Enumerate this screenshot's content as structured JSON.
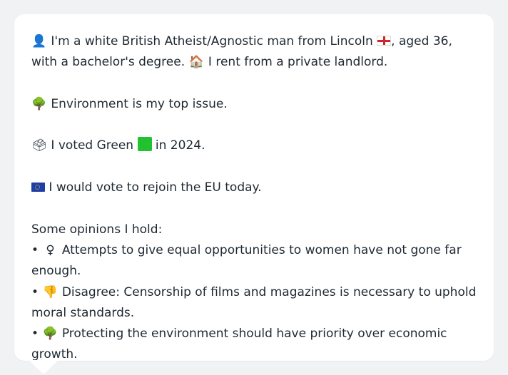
{
  "profile": {
    "line1": {
      "icon": "person-silhouette-icon",
      "text_a": "I'm a white British Atheist/Agnostic man from Lincoln",
      "flag": "england-flag-icon",
      "text_b": ", aged 36, with a bachelor's degree.",
      "house_icon": "house-icon",
      "text_c": "I rent from a private landlord."
    },
    "top_issue": {
      "icon": "tree-icon",
      "text": "Environment is my top issue."
    },
    "vote": {
      "icon": "ballot-box-icon",
      "text_a": "I voted Green",
      "square": "green-square-icon",
      "text_b": "in 2024."
    },
    "eu": {
      "icon": "eu-flag-icon",
      "text": "I would vote to rejoin the EU today."
    },
    "opinions_heading": "Some opinions I hold:",
    "opinions": [
      {
        "bullet": "•",
        "icon": "female-sign-icon",
        "text": "Attempts to give equal opportunities to women have not gone far enough."
      },
      {
        "bullet": "•",
        "icon": "thumbs-down-icon",
        "text": "Disagree: Censorship of films and magazines is necessary to uphold moral standards."
      },
      {
        "bullet": "•",
        "icon": "tree-icon",
        "text": "Protecting the environment should have priority over economic growth."
      }
    ]
  },
  "colors": {
    "background": "#f1f2f4",
    "bubble": "#ffffff",
    "text": "#1f2933",
    "green": "#21c12f",
    "eu_blue": "#1f3fa8"
  }
}
